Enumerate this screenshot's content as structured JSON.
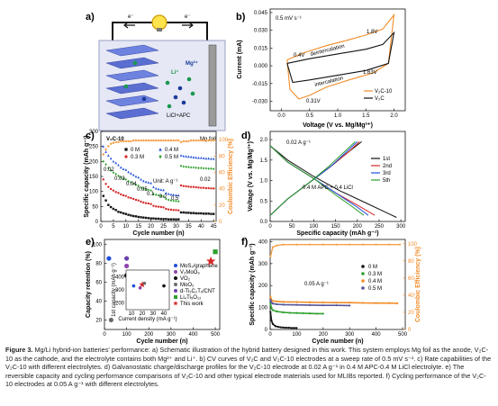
{
  "panel_a": {
    "letter": "a)",
    "electron_left": "e⁻",
    "electron_right": "e⁻",
    "ion_li": "Li⁺",
    "ion_mg": "Mg²⁺",
    "cathode_label": "V₂C-10",
    "electrolyte_label": "LiCl+APC",
    "anode_label": "Mg foil"
  },
  "panel_b": {
    "letter": "b)",
    "rate_label": "0.5 mV s⁻¹",
    "annotations": [
      "deintercalation",
      "intercalation",
      "0.4V",
      "1.8V",
      "1.63V",
      "0.31V"
    ],
    "legend": [
      "V₂C-10",
      "V₂C"
    ],
    "ylabel": "Current (mA)",
    "xlabel": "Voltage (V vs. Mg/Mg²⁺)",
    "xticks": [
      "0.0",
      "0.5",
      "1.0",
      "1.5",
      "2.0"
    ],
    "yticks": [
      "0.045",
      "0.030",
      "0.015",
      "0.000",
      "-0.015",
      "-0.030"
    ]
  },
  "panel_c": {
    "letter": "c)",
    "legend": [
      "0 M",
      "0.4 M",
      "0.3 M",
      "0.5 M"
    ],
    "unit_label": "Unit: A g⁻¹",
    "rate_labels": [
      "0.02",
      "0.03",
      "0.04",
      "0.05",
      "0.1",
      "0.2",
      "0.5",
      "0.02"
    ],
    "ylabel": "Specific capacity (mAh g⁻¹)",
    "y2label": "Coulombic Efficiency (%)",
    "xlabel": "Cycle number (n)",
    "xticks": [
      "0",
      "5",
      "10",
      "15",
      "20",
      "25",
      "30",
      "35",
      "40",
      "45"
    ],
    "yticks": [
      "0",
      "50",
      "100",
      "150",
      "200",
      "250",
      "300"
    ],
    "y2ticks": [
      "0",
      "20",
      "40",
      "60",
      "80",
      "100"
    ]
  },
  "panel_d": {
    "letter": "d)",
    "rate_label": "0.02 A g⁻¹",
    "electrolyte_label": "0.4 M APC + 0.4 LiCl",
    "legend": [
      "1st",
      "2nd",
      "3rd",
      "5th"
    ],
    "ylabel": "Voltage (V vs. Mg/Mg²⁺)",
    "xlabel": "Specific capacity (mAh g⁻¹)",
    "xticks": [
      "0",
      "50",
      "100",
      "150",
      "200",
      "250",
      "300"
    ],
    "yticks": [
      "0.0",
      "0.5",
      "1.0",
      "1.5",
      "2.0"
    ]
  },
  "panel_e": {
    "letter": "e)",
    "legend": [
      "MoS₂/graphene",
      "V₂MoO₆",
      "VO₂",
      "MoO₂",
      "d-Ti₃C₂Tₓ/CNT",
      "Li₄Ti₅O₁₂",
      "This work"
    ],
    "ylabel": "Capacity retention (%)",
    "xlabel": "Cycle number (n)",
    "xticks": [
      "0",
      "100",
      "200",
      "300",
      "400",
      "500"
    ],
    "yticks": [
      "20",
      "40",
      "60",
      "80",
      "100"
    ],
    "inset_ylabel": "1st capacity (mAh g⁻¹)",
    "inset_xlabel": "Current density (mA g⁻¹)",
    "inset_xticks": [
      "10",
      "20",
      "30",
      "40"
    ],
    "inset_yticks": [
      "200",
      "300",
      "400"
    ]
  },
  "panel_f": {
    "letter": "f)",
    "rate_label": "0.05 A g⁻¹",
    "legend": [
      "0 M",
      "0.3 M",
      "0.4 M",
      "0.5 M"
    ],
    "ylabel": "Specific capacity (mAh g⁻¹)",
    "y2label": "Coulombic Efficiency (%)",
    "xlabel": "Cycle number (n)",
    "xticks": [
      "0",
      "100",
      "200",
      "300",
      "400",
      "500"
    ],
    "yticks": [
      "0",
      "100",
      "200",
      "300",
      "400"
    ],
    "y2ticks": [
      "0",
      "20",
      "40",
      "60",
      "80",
      "100"
    ]
  },
  "caption": {
    "label": "Figure 3.",
    "text": "Mg/Li hybrid-ion batteries' performance: a) Schematic illustration of the hybrid battery designed in this work. This system employs Mg foil as the anode, V₂C-10 as the cathode, and the electrolyte contains both Mg²⁺ and Li⁺. b) CV curves of V₂C and V₂C-10 electrodes at a sweep rate of 0.5 mV s⁻¹. c) Rate capabilities of the V₂C-10 with different electrolytes. d) Galvanostatic charge/discharge profiles for the V₂C-10 electrode at 0.02 A g⁻¹ in 0.4 M APC-0.4 M LiCl electrolyte. e) The reversible capacity and cycling performance comparisons of V₂C-10 and other typical electrode materials used for MLIBs reported. f) Cycling performance of the V₂C-10 electrodes at 0.05 A g⁻¹ with different electrolytes."
  },
  "colors": {
    "orange": "#f28c28",
    "black": "#111111",
    "red": "#d62728",
    "blue": "#1f4fd8",
    "green": "#2ca02c",
    "purple": "#8e44ad",
    "grey": "#6b6b6b",
    "ce_orange": "#f5a04a"
  },
  "chart_data": [
    {
      "panel": "b",
      "type": "line",
      "xlabel": "Voltage (V vs. Mg/Mg²⁺)",
      "ylabel": "Current (mA)",
      "xlim": [
        -0.2,
        2.2
      ],
      "ylim": [
        -0.038,
        0.048
      ],
      "series": [
        {
          "name": "V₂C-10",
          "x": [
            0.1,
            0.4,
            0.8,
            1.2,
            1.5,
            1.8,
            1.95,
            2.0,
            1.9,
            1.63,
            1.2,
            0.8,
            0.5,
            0.31,
            0.15,
            0.1
          ],
          "y": [
            0.005,
            0.011,
            0.017,
            0.022,
            0.026,
            0.031,
            0.04,
            0.043,
            0.002,
            -0.006,
            -0.012,
            -0.018,
            -0.025,
            -0.028,
            -0.02,
            0.005
          ]
        },
        {
          "name": "V₂C",
          "x": [
            0.1,
            0.5,
            1.0,
            1.5,
            1.8,
            2.0,
            1.9,
            1.5,
            1.0,
            0.5,
            0.2,
            0.1
          ],
          "y": [
            0.002,
            0.006,
            0.01,
            0.014,
            0.018,
            0.028,
            0.002,
            -0.004,
            -0.008,
            -0.012,
            -0.014,
            0.002
          ]
        }
      ]
    },
    {
      "panel": "c",
      "type": "scatter",
      "xlabel": "Cycle number (n)",
      "ylabel": "Specific capacity (mAh g⁻¹)",
      "y2label": "Coulombic Efficiency (%)",
      "xlim": [
        0,
        46
      ],
      "ylim": [
        0,
        300
      ],
      "y2lim": [
        0,
        110
      ],
      "series": [
        {
          "name": "0 M",
          "values": [
            85,
            70,
            55,
            48,
            42,
            38,
            32,
            30,
            27,
            25,
            22,
            20,
            18,
            17,
            15,
            14,
            13,
            12,
            11,
            10,
            10,
            9,
            9,
            8,
            8,
            8,
            7,
            7,
            7,
            7,
            7,
            30,
            30,
            29,
            29,
            28,
            28,
            27,
            27,
            27,
            26,
            26,
            26,
            25,
            25
          ]
        },
        {
          "name": "0.3 M",
          "values": [
            140,
            125,
            115,
            108,
            103,
            98,
            95,
            90,
            87,
            85,
            80,
            78,
            75,
            72,
            70,
            66,
            63,
            61,
            60,
            58,
            52,
            50,
            49,
            48,
            47,
            42,
            40,
            39,
            38,
            38,
            37,
            120,
            118,
            117,
            116,
            115,
            115,
            114,
            113,
            112,
            112,
            111,
            111,
            110,
            110
          ]
        },
        {
          "name": "0.4 M",
          "values": [
            250,
            232,
            220,
            210,
            200,
            195,
            188,
            180,
            175,
            172,
            165,
            160,
            155,
            150,
            147,
            140,
            135,
            132,
            130,
            128,
            115,
            110,
            108,
            106,
            105,
            95,
            92,
            90,
            89,
            88,
            87,
            220,
            218,
            217,
            216,
            215,
            214,
            213,
            212,
            212,
            211,
            210,
            210,
            209,
            209
          ]
        },
        {
          "name": "0.5 M",
          "values": [
            200,
            190,
            178,
            170,
            163,
            158,
            152,
            147,
            143,
            140,
            134,
            130,
            126,
            122,
            119,
            113,
            110,
            107,
            105,
            103,
            92,
            89,
            87,
            85,
            84,
            75,
            72,
            70,
            69,
            68,
            67,
            185,
            183,
            182,
            181,
            180,
            180,
            179,
            178,
            178,
            177,
            177,
            176,
            176,
            175
          ]
        },
        {
          "name": "Coulombic Efficiency",
          "axis": "y2",
          "values": [
            82,
            88,
            92,
            95,
            96,
            97,
            97,
            98,
            98,
            98,
            98,
            98,
            99,
            99,
            99,
            99,
            99,
            99,
            99,
            99,
            99,
            99,
            99,
            99,
            99,
            99,
            99,
            99,
            99,
            99,
            99,
            97,
            98,
            98,
            98,
            99,
            99,
            99,
            99,
            99,
            99,
            99,
            99,
            99,
            99
          ]
        }
      ]
    },
    {
      "panel": "d",
      "type": "line",
      "xlabel": "Specific capacity (mAh g⁻¹)",
      "ylabel": "Voltage (V vs. Mg/Mg²⁺)",
      "xlim": [
        0,
        310
      ],
      "ylim": [
        0,
        2.2
      ],
      "series": [
        {
          "name": "1st",
          "discharge": {
            "x": [
              0,
              40,
              100,
              160,
              220,
              270,
              290
            ],
            "y": [
              1.85,
              1.5,
              1.1,
              0.75,
              0.45,
              0.2,
              0.1
            ]
          },
          "charge": {
            "x": [
              0,
              40,
              90,
              140,
              180,
              210
            ],
            "y": [
              0.15,
              0.55,
              0.95,
              1.35,
              1.7,
              1.95
            ]
          }
        },
        {
          "name": "2nd",
          "discharge": {
            "x": [
              0,
              40,
              100,
              150,
              200,
              240
            ],
            "y": [
              1.85,
              1.45,
              1.05,
              0.7,
              0.4,
              0.15
            ]
          },
          "charge": {
            "x": [
              0,
              40,
              90,
              140,
              180,
              205
            ],
            "y": [
              0.15,
              0.55,
              0.95,
              1.35,
              1.7,
              1.95
            ]
          }
        },
        {
          "name": "3rd",
          "discharge": {
            "x": [
              0,
              40,
              100,
              150,
              200,
              225
            ],
            "y": [
              1.85,
              1.45,
              1.05,
              0.7,
              0.35,
              0.15
            ]
          },
          "charge": {
            "x": [
              0,
              40,
              90,
              140,
              175,
              200
            ],
            "y": [
              0.15,
              0.55,
              0.95,
              1.35,
              1.7,
              1.95
            ]
          }
        },
        {
          "name": "5th",
          "discharge": {
            "x": [
              0,
              40,
              100,
              150,
              190,
              215
            ],
            "y": [
              1.85,
              1.45,
              1.05,
              0.65,
              0.35,
              0.15
            ]
          },
          "charge": {
            "x": [
              0,
              40,
              90,
              135,
              170,
              195
            ],
            "y": [
              0.15,
              0.55,
              0.95,
              1.35,
              1.7,
              1.95
            ]
          }
        }
      ]
    },
    {
      "panel": "e",
      "type": "scatter",
      "xlabel": "Cycle number (n)",
      "ylabel": "Capacity retention (%)",
      "xlim": [
        0,
        520
      ],
      "ylim": [
        10,
        105
      ],
      "series": [
        {
          "name": "MoS₂/graphene",
          "x": [
            20
          ],
          "y": [
            85
          ]
        },
        {
          "name": "V₂MoO₆",
          "x": [
            100
          ],
          "y": [
            77
          ]
        },
        {
          "name": "VO₂",
          "x": [
            100
          ],
          "y": [
            67
          ]
        },
        {
          "name": "MoO₂",
          "x": [
            30
          ],
          "y": [
            20
          ]
        },
        {
          "name": "d-Ti₃C₂Tₓ/CNT",
          "x": [
            100
          ],
          "y": [
            85
          ]
        },
        {
          "name": "Li₄Ti₅O₁₂",
          "x": [
            500
          ],
          "y": [
            92
          ]
        },
        {
          "name": "This work",
          "x": [
            480
          ],
          "y": [
            82
          ]
        }
      ]
    },
    {
      "panel": "f",
      "type": "scatter",
      "xlabel": "Cycle number (n)",
      "ylabel": "Specific capacity (mAh g⁻¹)",
      "y2label": "Coulombic Efficiency (%)",
      "xlim": [
        0,
        510
      ],
      "ylim": [
        0,
        410
      ],
      "y2lim": [
        0,
        105
      ],
      "series": [
        {
          "name": "0 M",
          "x": [
            1,
            5,
            10,
            20,
            30,
            40,
            50,
            60,
            70,
            80,
            90,
            100
          ],
          "y": [
            80,
            40,
            25,
            15,
            12,
            10,
            9,
            8,
            8,
            7,
            7,
            7
          ]
        },
        {
          "name": "0.3 M",
          "x": [
            1,
            5,
            10,
            25,
            50,
            75,
            100,
            125,
            150,
            175,
            200
          ],
          "y": [
            120,
            95,
            88,
            82,
            78,
            76,
            75,
            74,
            73,
            72,
            72
          ]
        },
        {
          "name": "0.4 M",
          "x": [
            1,
            5,
            10,
            25,
            50,
            100,
            150,
            200,
            250,
            300,
            350,
            400,
            450,
            480
          ],
          "y": [
            150,
            135,
            130,
            128,
            126,
            125,
            124,
            123,
            122,
            122,
            121,
            120,
            120,
            119
          ]
        },
        {
          "name": "0.5 M",
          "x": [
            1,
            5,
            10,
            25,
            50,
            100,
            150,
            200,
            250,
            300
          ],
          "y": [
            135,
            122,
            118,
            115,
            113,
            112,
            111,
            110,
            110,
            109
          ]
        },
        {
          "name": "Coulombic Efficiency",
          "axis": "y2",
          "x": [
            1,
            10,
            25,
            50,
            100,
            150,
            200,
            250,
            300,
            350,
            400,
            450,
            490
          ],
          "y": [
            85,
            96,
            98,
            99,
            99,
            99,
            99,
            99,
            99,
            99,
            99,
            99,
            99
          ]
        }
      ]
    }
  ]
}
